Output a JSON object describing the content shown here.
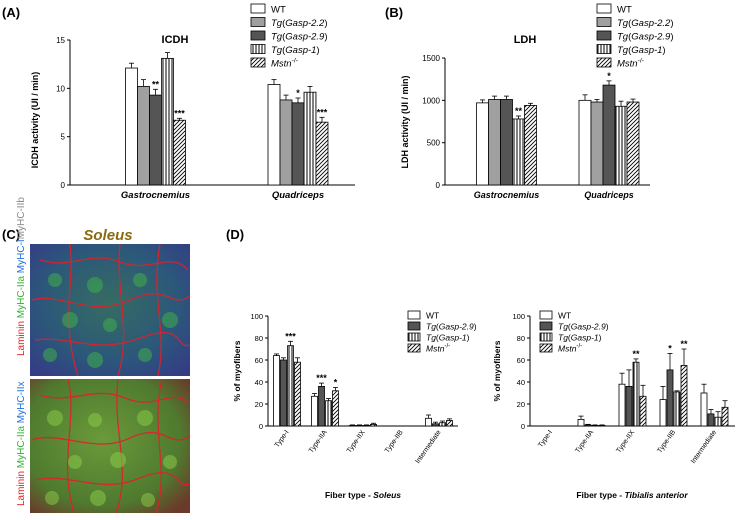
{
  "panels": {
    "A": "(A)",
    "B": "(B)",
    "C": "(C)",
    "D": "(D)"
  },
  "micrograph": {
    "title": "Soleus",
    "stain_top": [
      {
        "text": "Laminin ",
        "color": "#e21b1b"
      },
      {
        "text": "MyHC-IIa ",
        "color": "#2fb52f"
      },
      {
        "text": "MyHC-I",
        "color": "#1f6fe0"
      },
      {
        "text": "MyHC-IIb",
        "color": "#888888"
      }
    ],
    "stain_bottom": [
      {
        "text": "Laminin ",
        "color": "#e21b1b"
      },
      {
        "text": "MyHC-IIa ",
        "color": "#2fb52f"
      },
      {
        "text": "MyHC-IIx",
        "color": "#1f6fe0"
      }
    ]
  },
  "colors": {
    "WT": "#ffffff",
    "Gasp22": "#a0a0a0",
    "Gasp29": "#555555",
    "Gasp1": "vertical-stripes",
    "Mstn": "diagonal-hatch"
  },
  "chart_data": [
    {
      "id": "A",
      "type": "bar",
      "title": "ICDH",
      "xlabel": "",
      "ylabel": "ICDH activity (UI / min)",
      "ylim": [
        0,
        15
      ],
      "yticks": [
        0,
        5,
        10,
        15
      ],
      "categories": [
        "Gastrocnemius",
        "Quadriceps"
      ],
      "series": [
        {
          "name": "WT",
          "values": [
            12.1,
            10.4
          ],
          "errors": [
            0.5,
            0.5
          ],
          "sig": [
            "",
            ""
          ]
        },
        {
          "name": "Tg(Gasp-2.2)",
          "values": [
            10.2,
            8.8
          ],
          "errors": [
            0.7,
            0.5
          ],
          "sig": [
            "",
            ""
          ]
        },
        {
          "name": "Tg(Gasp-2.9)",
          "values": [
            9.3,
            8.5
          ],
          "errors": [
            0.6,
            0.5
          ],
          "sig": [
            "**",
            "*"
          ]
        },
        {
          "name": "Tg(Gasp-1)",
          "values": [
            13.1,
            9.6
          ],
          "errors": [
            0.6,
            0.6
          ],
          "sig": [
            "",
            ""
          ]
        },
        {
          "name": "Mstn-/-",
          "values": [
            6.7,
            6.5
          ],
          "errors": [
            0.2,
            0.5
          ],
          "sig": [
            "***",
            "***"
          ]
        }
      ]
    },
    {
      "id": "B",
      "type": "bar",
      "title": "LDH",
      "xlabel": "",
      "ylabel": "LDH activity (UI / min)",
      "ylim": [
        0,
        1500
      ],
      "yticks": [
        0,
        500,
        1000,
        1500
      ],
      "categories": [
        "Gastrocnemius",
        "Quadriceps"
      ],
      "series": [
        {
          "name": "WT",
          "values": [
            970,
            1000
          ],
          "errors": [
            35,
            65
          ],
          "sig": [
            "",
            ""
          ]
        },
        {
          "name": "Tg(Gasp-2.2)",
          "values": [
            1010,
            980
          ],
          "errors": [
            40,
            30
          ],
          "sig": [
            "",
            ""
          ]
        },
        {
          "name": "Tg(Gasp-2.9)",
          "values": [
            1010,
            1180
          ],
          "errors": [
            40,
            50
          ],
          "sig": [
            "",
            "*"
          ]
        },
        {
          "name": "Tg(Gasp-1)",
          "values": [
            780,
            930
          ],
          "errors": [
            35,
            60
          ],
          "sig": [
            "**",
            ""
          ]
        },
        {
          "name": "Mstn-/-",
          "values": [
            940,
            980
          ],
          "errors": [
            25,
            35
          ],
          "sig": [
            "",
            ""
          ]
        }
      ]
    },
    {
      "id": "D1",
      "type": "bar",
      "title": "",
      "xlabel": "Fiber   type   - Soleus",
      "ylabel": "% of myofibers",
      "ylim": [
        0,
        100
      ],
      "yticks": [
        0,
        20,
        40,
        60,
        80,
        100
      ],
      "categories": [
        "Type-I",
        "Type-IIA",
        "Type-IIX",
        "Type-IIB",
        "Intermediate"
      ],
      "series": [
        {
          "name": "WT",
          "values": [
            64,
            27,
            0.5,
            0,
            7
          ],
          "errors": [
            1.5,
            2.5,
            0.5,
            0,
            3
          ],
          "sig": [
            "",
            "",
            "",
            "",
            ""
          ]
        },
        {
          "name": "Tg(Gasp-2.9)",
          "values": [
            60,
            36,
            0.5,
            0,
            2
          ],
          "errors": [
            2,
            3,
            0.5,
            0,
            1.5
          ],
          "sig": [
            "",
            "***",
            "",
            "",
            ""
          ]
        },
        {
          "name": "Tg(Gasp-1)",
          "values": [
            73,
            23,
            0.5,
            0,
            3
          ],
          "errors": [
            4,
            2,
            0.5,
            0,
            1.5
          ],
          "sig": [
            "***",
            "",
            "",
            "",
            ""
          ]
        },
        {
          "name": "Mstn-/-",
          "values": [
            58,
            32,
            1.5,
            0,
            5
          ],
          "errors": [
            4,
            3,
            1,
            0,
            1.5
          ],
          "sig": [
            "",
            "*",
            "",
            "",
            ""
          ]
        }
      ]
    },
    {
      "id": "D2",
      "type": "bar",
      "title": "",
      "xlabel": "Fiber   type   - Tibialis anterior",
      "ylabel": "% of myofibers",
      "ylim": [
        0,
        100
      ],
      "yticks": [
        0,
        20,
        40,
        60,
        80,
        100
      ],
      "categories": [
        "Type-I",
        "Type-IIA",
        "Type-IIX",
        "Type-IIB",
        "Intermediate"
      ],
      "series": [
        {
          "name": "WT",
          "values": [
            0,
            6,
            38,
            24,
            30
          ],
          "errors": [
            0,
            3,
            10,
            12,
            8
          ],
          "sig": [
            "",
            "",
            "",
            "",
            ""
          ]
        },
        {
          "name": "Tg(Gasp-2.9)",
          "values": [
            0,
            1,
            36,
            51,
            11
          ],
          "errors": [
            0,
            0.5,
            15,
            15,
            4
          ],
          "sig": [
            "",
            "",
            "",
            "*",
            ""
          ]
        },
        {
          "name": "Tg(Gasp-1)",
          "values": [
            0,
            0.5,
            58,
            31,
            8
          ],
          "errors": [
            0,
            0.5,
            3,
            1,
            5
          ],
          "sig": [
            "",
            "",
            "**",
            "",
            ""
          ]
        },
        {
          "name": "Mstn-/-",
          "values": [
            0,
            0.5,
            27,
            55,
            17
          ],
          "errors": [
            0,
            0.5,
            10,
            15,
            6
          ],
          "sig": [
            "",
            "",
            "",
            "**",
            ""
          ]
        }
      ]
    }
  ]
}
